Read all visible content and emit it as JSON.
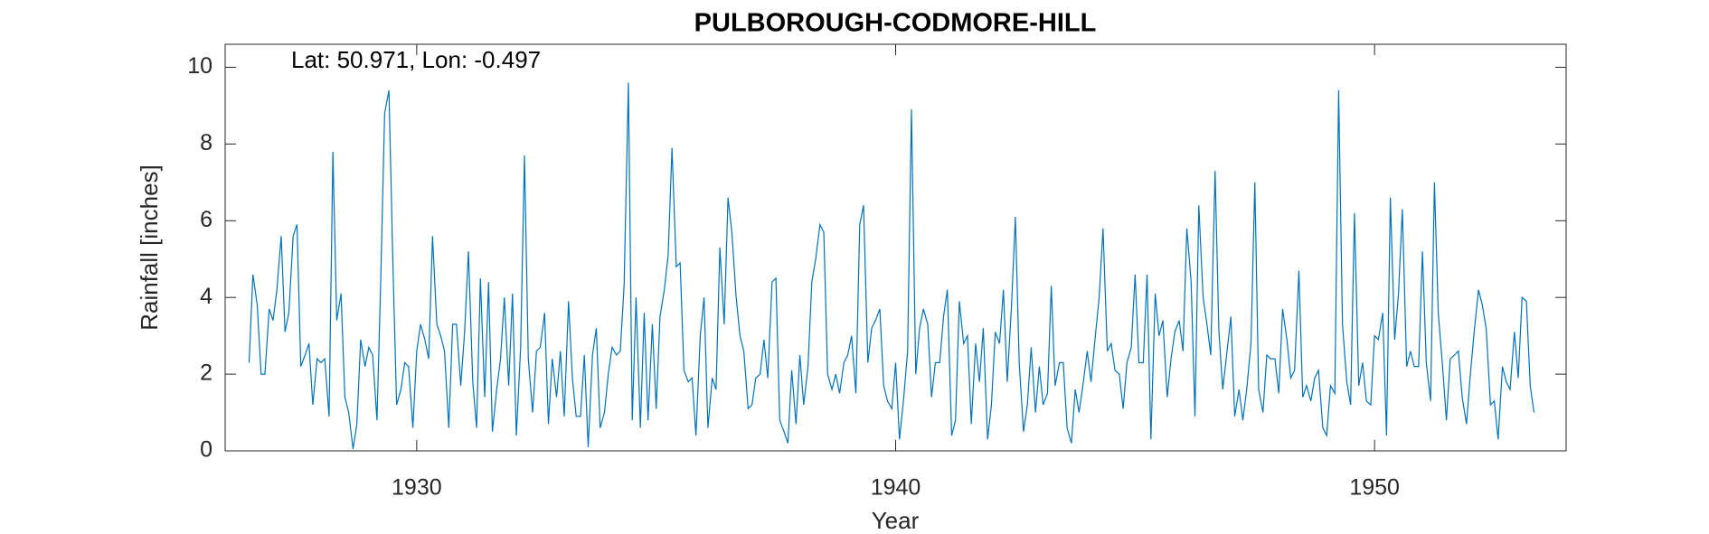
{
  "chart_data": {
    "type": "line",
    "title": "PULBOROUGH-CODMORE-HILL",
    "annotation": "Lat: 50.971, Lon: -0.497",
    "xlabel": "Year",
    "ylabel": "Rainfall [inches]",
    "xlim": [
      1926,
      1954
    ],
    "xticks": [
      1930,
      1940,
      1950
    ],
    "ylim": [
      0,
      10.6
    ],
    "yticks": [
      0,
      2,
      4,
      6,
      8,
      10
    ],
    "series": [
      {
        "name": "Rainfall",
        "color": "#0072bd",
        "x": [
          1926.5,
          1926.58,
          1926.67,
          1926.75,
          1926.83,
          1926.92,
          1927,
          1927.08,
          1927.17,
          1927.25,
          1927.33,
          1927.42,
          1927.5,
          1927.58,
          1927.67,
          1927.75,
          1927.83,
          1927.92,
          1928,
          1928.08,
          1928.17,
          1928.25,
          1928.33,
          1928.42,
          1928.5,
          1928.58,
          1928.67,
          1928.75,
          1928.83,
          1928.92,
          1929,
          1929.08,
          1929.17,
          1929.25,
          1929.33,
          1929.42,
          1929.5,
          1929.58,
          1929.67,
          1929.75,
          1929.83,
          1929.92,
          1930,
          1930.08,
          1930.17,
          1930.25,
          1930.33,
          1930.42,
          1930.5,
          1930.58,
          1930.67,
          1930.75,
          1930.83,
          1930.92,
          1931,
          1931.08,
          1931.17,
          1931.25,
          1931.33,
          1931.42,
          1931.5,
          1931.58,
          1931.67,
          1931.75,
          1931.83,
          1931.92,
          1932,
          1932.08,
          1932.17,
          1932.25,
          1932.33,
          1932.42,
          1932.5,
          1932.58,
          1932.67,
          1932.75,
          1932.83,
          1932.92,
          1933,
          1933.08,
          1933.17,
          1933.25,
          1933.33,
          1933.42,
          1933.5,
          1933.58,
          1933.67,
          1933.75,
          1933.83,
          1933.92,
          1934,
          1934.08,
          1934.17,
          1934.25,
          1934.33,
          1934.42,
          1934.5,
          1934.58,
          1934.67,
          1934.75,
          1934.83,
          1934.92,
          1935,
          1935.08,
          1935.17,
          1935.25,
          1935.33,
          1935.42,
          1935.5,
          1935.58,
          1935.67,
          1935.75,
          1935.83,
          1935.92,
          1936,
          1936.08,
          1936.17,
          1936.25,
          1936.33,
          1936.42,
          1936.5,
          1936.58,
          1936.67,
          1936.75,
          1936.83,
          1936.92,
          1937,
          1937.08,
          1937.17,
          1937.25,
          1937.33,
          1937.42,
          1937.5,
          1937.58,
          1937.67,
          1937.75,
          1937.83,
          1937.92,
          1938,
          1938.08,
          1938.17,
          1938.25,
          1938.33,
          1938.42,
          1938.5,
          1938.58,
          1938.67,
          1938.75,
          1938.83,
          1938.92,
          1939,
          1939.08,
          1939.17,
          1939.25,
          1939.33,
          1939.42,
          1939.5,
          1939.58,
          1939.67,
          1939.75,
          1939.83,
          1939.92,
          1940,
          1940.08,
          1940.17,
          1940.25,
          1940.33,
          1940.42,
          1940.5,
          1940.58,
          1940.67,
          1940.75,
          1940.83,
          1940.92,
          1941,
          1941.08,
          1941.17,
          1941.25,
          1941.33,
          1941.42,
          1941.5,
          1941.58,
          1941.67,
          1941.75,
          1941.83,
          1941.92,
          1942,
          1942.08,
          1942.17,
          1942.25,
          1942.33,
          1942.42,
          1942.5,
          1942.58,
          1942.67,
          1942.75,
          1942.83,
          1942.92,
          1943,
          1943.08,
          1943.17,
          1943.25,
          1943.33,
          1943.42,
          1943.5,
          1943.58,
          1943.67,
          1943.75,
          1943.83,
          1943.92,
          1944,
          1944.08,
          1944.17,
          1944.25,
          1944.33,
          1944.42,
          1944.5,
          1944.58,
          1944.67,
          1944.75,
          1944.83,
          1944.92,
          1945,
          1945.08,
          1945.17,
          1945.25,
          1945.33,
          1945.42,
          1945.5,
          1945.58,
          1945.67,
          1945.75,
          1945.83,
          1945.92,
          1946,
          1946.08,
          1946.17,
          1946.25,
          1946.33,
          1946.42,
          1946.5,
          1946.58,
          1946.67,
          1946.75,
          1946.83,
          1946.92,
          1947,
          1947.08,
          1947.17,
          1947.25,
          1947.33,
          1947.42,
          1947.5,
          1947.58,
          1947.67,
          1947.75,
          1947.83,
          1947.92,
          1948,
          1948.08,
          1948.17,
          1948.25,
          1948.33,
          1948.42,
          1948.5,
          1948.58,
          1948.67,
          1948.75,
          1948.83,
          1948.92,
          1949,
          1949.08,
          1949.17,
          1949.25,
          1949.33,
          1949.42,
          1949.5,
          1949.58,
          1949.67,
          1949.75,
          1949.83,
          1949.92,
          1950,
          1950.08,
          1950.17,
          1950.25,
          1950.33,
          1950.42,
          1950.5,
          1950.58,
          1950.67,
          1950.75,
          1950.83,
          1950.92,
          1951,
          1951.08,
          1951.17,
          1951.25,
          1951.33,
          1951.42,
          1951.5,
          1951.58,
          1951.67,
          1951.75,
          1951.83,
          1951.92,
          1952,
          1952.08,
          1952.17,
          1952.25,
          1952.33,
          1952.42,
          1952.5,
          1952.58,
          1952.67,
          1952.75,
          1952.83,
          1952.92,
          1953,
          1953.08,
          1953.17,
          1953.25,
          1953.33
        ],
        "values": [
          2.3,
          4.6,
          3.8,
          2.0,
          2.0,
          3.7,
          3.4,
          4.2,
          5.6,
          3.1,
          3.6,
          5.6,
          5.9,
          2.2,
          2.5,
          2.8,
          1.2,
          2.4,
          2.3,
          2.4,
          0.9,
          7.8,
          3.4,
          4.1,
          1.4,
          1.0,
          0.05,
          0.7,
          2.9,
          2.2,
          2.7,
          2.5,
          0.8,
          4.5,
          8.8,
          9.4,
          5.0,
          1.2,
          1.6,
          2.3,
          2.2,
          0.6,
          2.6,
          3.3,
          2.9,
          2.4,
          5.6,
          3.3,
          3.0,
          2.6,
          0.6,
          3.3,
          3.3,
          1.7,
          3.1,
          5.2,
          1.8,
          0.6,
          4.5,
          1.4,
          4.4,
          0.5,
          1.6,
          2.4,
          4.0,
          1.7,
          4.1,
          0.4,
          2.7,
          7.7,
          2.4,
          1.0,
          2.6,
          2.7,
          3.6,
          0.7,
          2.4,
          1.4,
          2.6,
          0.9,
          3.9,
          1.9,
          0.9,
          0.9,
          2.5,
          0.1,
          2.5,
          3.2,
          0.6,
          1.0,
          2.0,
          2.7,
          2.5,
          2.6,
          4.3,
          9.6,
          0.8,
          4.0,
          0.6,
          3.6,
          0.8,
          3.3,
          1.1,
          3.5,
          4.2,
          5.1,
          7.9,
          4.8,
          4.9,
          2.1,
          1.8,
          1.9,
          0.4,
          3.0,
          4.0,
          0.6,
          1.9,
          1.6,
          5.3,
          3.3,
          6.6,
          5.7,
          4.0,
          3.0,
          2.6,
          1.1,
          1.2,
          1.9,
          2.0,
          2.9,
          1.9,
          4.4,
          4.5,
          0.8,
          0.5,
          0.2,
          2.1,
          0.7,
          2.5,
          1.2,
          2.2,
          4.4,
          5.0,
          5.9,
          5.7,
          2.0,
          1.6,
          2.0,
          1.5,
          2.3,
          2.5,
          3.0,
          1.5,
          5.9,
          6.4,
          2.3,
          3.2,
          3.4,
          3.7,
          1.7,
          1.3,
          1.1,
          2.3,
          0.3,
          1.4,
          2.6,
          8.9,
          2.0,
          3.2,
          3.7,
          3.3,
          1.4,
          2.3,
          2.3,
          3.5,
          4.2,
          0.4,
          0.8,
          3.9,
          2.8,
          3.0,
          0.7,
          2.8,
          1.8,
          3.2,
          0.3,
          1.2,
          3.1,
          2.8,
          4.2,
          1.8,
          3.8,
          6.1,
          2.3,
          0.5,
          1.2,
          2.7,
          1.0,
          2.2,
          1.2,
          1.5,
          4.3,
          1.7,
          2.3,
          2.3,
          0.6,
          0.2,
          1.6,
          1.0,
          1.8,
          2.6,
          1.8,
          3.0,
          4.0,
          5.8,
          2.6,
          2.8,
          2.1,
          2.0,
          1.1,
          2.3,
          2.7,
          4.6,
          2.3,
          2.3,
          4.6,
          0.3,
          4.1,
          3.0,
          3.4,
          1.4,
          2.4,
          3.1,
          3.4,
          2.6,
          5.8,
          4.4,
          0.9,
          6.4,
          4.0,
          3.3,
          2.5,
          7.3,
          3.1,
          1.6,
          2.6,
          3.5,
          0.9,
          1.6,
          0.8,
          1.6,
          2.8,
          7.0,
          1.6,
          1.0,
          2.5,
          2.4,
          2.4,
          1.5,
          3.7,
          2.9,
          1.9,
          2.1,
          4.7,
          1.4,
          1.7,
          1.3,
          1.9,
          2.1,
          0.6,
          0.4,
          1.7,
          1.5,
          9.4,
          3.3,
          1.8,
          1.2,
          6.2,
          1.7,
          2.3,
          1.3,
          1.2,
          3.0,
          2.9,
          3.6,
          0.4,
          6.6,
          2.9,
          4.1,
          6.3,
          2.2,
          2.6,
          2.2,
          2.2,
          5.2,
          2.3,
          1.3,
          7.0,
          3.6,
          2.2,
          0.8,
          2.4,
          2.5,
          2.6,
          1.4,
          0.7,
          2.0,
          3.1,
          4.2,
          3.8,
          3.2,
          1.2,
          1.3,
          0.3,
          2.2,
          1.8,
          1.6,
          3.1,
          1.9,
          4.0,
          3.9,
          1.7,
          1.0
        ]
      }
    ]
  }
}
